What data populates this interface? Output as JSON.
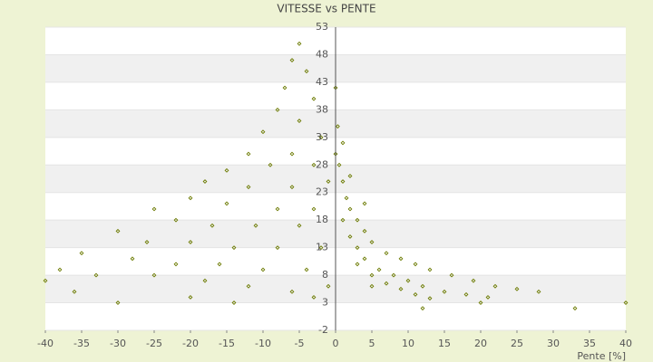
{
  "chart_data": {
    "type": "scatter",
    "title": "VITESSE vs PENTE",
    "x_label": "Pente [%]",
    "x": [
      -5,
      -6,
      -4,
      -7,
      -3,
      -8,
      -5,
      -10,
      -2,
      -12,
      -6,
      -15,
      -9,
      -3,
      -18,
      -12,
      -6,
      -1,
      -20,
      -15,
      -8,
      -3,
      -25,
      -22,
      -17,
      -11,
      -5,
      -30,
      -26,
      -20,
      -14,
      -8,
      -2,
      -35,
      -28,
      -22,
      -16,
      -10,
      -4,
      -38,
      -33,
      -25,
      -18,
      -12,
      -6,
      -40,
      -36,
      -30,
      -20,
      -14,
      -3,
      -1,
      0,
      0.5,
      1,
      1.5,
      2,
      3,
      4,
      5,
      7,
      9,
      11,
      13,
      16,
      19,
      22,
      25,
      28,
      1,
      2,
      3,
      4,
      6,
      8,
      10,
      12,
      15,
      18,
      21,
      3,
      5,
      7,
      9,
      11,
      13,
      33,
      40,
      4,
      2,
      1,
      0.3,
      0,
      5,
      12,
      20
    ],
    "values": [
      50,
      47,
      45,
      42,
      40,
      38,
      36,
      34,
      33,
      30,
      30,
      27,
      28,
      28,
      25,
      24,
      24,
      25,
      22,
      21,
      20,
      20,
      20,
      18,
      17,
      17,
      17,
      16,
      14,
      14,
      13,
      13,
      13,
      12,
      11,
      10,
      10,
      9,
      9,
      9,
      8,
      8,
      7,
      6,
      5,
      7,
      5,
      3,
      4,
      3,
      4,
      6,
      30,
      28,
      25,
      22,
      20,
      18,
      16,
      14,
      12,
      11,
      10,
      9,
      8,
      7,
      6,
      5.5,
      5,
      18,
      15,
      13,
      11,
      9,
      8,
      7,
      6,
      5,
      4.5,
      4,
      10,
      8,
      6.5,
      5.5,
      4.5,
      3.8,
      2,
      3,
      21,
      26,
      32,
      35,
      42,
      6,
      2,
      3
    ],
    "color": "#6b7a00",
    "xlim": [
      -40,
      40
    ],
    "xticks": [
      -40,
      -35,
      -30,
      -25,
      -20,
      -15,
      -10,
      -5,
      0,
      5,
      10,
      15,
      20,
      25,
      30,
      35,
      40
    ],
    "ylim": [
      -2,
      53
    ],
    "yticks": [
      -2,
      3,
      8,
      13,
      18,
      23,
      28,
      33,
      38,
      43,
      48,
      53
    ],
    "grid": true
  }
}
